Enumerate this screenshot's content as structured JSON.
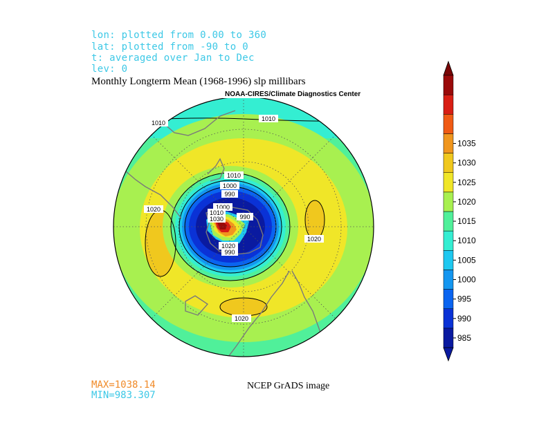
{
  "meta": {
    "lon": "lon: plotted from 0.00 to 360",
    "lat": "lat: plotted from -90 to 0",
    "t": "t: averaged over Jan to Dec",
    "lev": "lev: 0"
  },
  "title": "Monthly Longterm Mean (1968-1996) slp millibars",
  "credit": "NOAA-CIRES/Climate Diagnostics Center",
  "stats": {
    "max": "MAX=1038.14",
    "min": "MIN=983.307",
    "max_color": "#f08a28",
    "min_color": "#3cc8e6"
  },
  "footer": "NCEP GrADS image",
  "colorbar": {
    "ticks": [
      "985",
      "990",
      "995",
      "1000",
      "1005",
      "1010",
      "1015",
      "1020",
      "1025",
      "1030",
      "1035"
    ],
    "colors": [
      "#0a1aa0",
      "#0a32d6",
      "#0a64f0",
      "#1496f0",
      "#1ec8f0",
      "#34eed2",
      "#50f09a",
      "#a8f050",
      "#f0e628",
      "#f0c81e",
      "#f0961e",
      "#f05a14",
      "#d81e14",
      "#9a0a0a"
    ]
  },
  "contour_labels": {
    "outer_top": "1010",
    "outer_left": "1010",
    "left_high": "1020",
    "right_high": "1020",
    "bottom_high": "1020",
    "inner_1010": "1010",
    "inner_1000": "1000",
    "inner_990": "990",
    "core_1000": "1000",
    "core_1010": "1010",
    "core_1030": "1030",
    "core_990_right": "990",
    "core_1020": "1020",
    "core_990_bottom": "990"
  }
}
